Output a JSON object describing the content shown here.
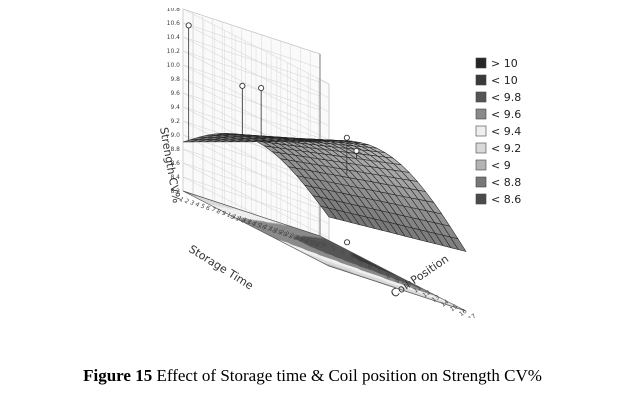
{
  "chart_data": {
    "type": "surface3d",
    "z_axis_label": "Strength CV%",
    "x_axis_label": "Storage Time",
    "y_axis_label": "Coil Position",
    "z_ticks": [
      "10.8",
      "10.6",
      "10.4",
      "10.2",
      "10.0",
      "9.8",
      "9.6",
      "9.4",
      "9.2",
      "9.0",
      "8.8",
      "8.6",
      "8.4",
      "8.2"
    ],
    "x_ticks": [
      "1",
      "2",
      "3",
      "4",
      "5",
      "6",
      "7",
      "8",
      "9",
      "10",
      "11",
      "12",
      "13",
      "14",
      "15",
      "16",
      "17",
      "18",
      "19",
      "20",
      "21",
      "22",
      "23",
      "24",
      "25",
      "26",
      "27"
    ],
    "y_ticks": [
      "1",
      "2",
      "3",
      "4",
      "5",
      "6",
      "7",
      "8",
      "9",
      "10",
      "11",
      "12",
      "13",
      "14",
      "15",
      "16",
      "17"
    ],
    "zlim": [
      8.2,
      10.8
    ],
    "legend_position": "right",
    "legend": [
      {
        "label": "> 10",
        "color": "#262626"
      },
      {
        "label": "< 10",
        "color": "#3a3a3a"
      },
      {
        "label": "< 9.8",
        "color": "#555555"
      },
      {
        "label": "< 9.6",
        "color": "#8a8a8a"
      },
      {
        "label": "< 9.4",
        "color": "#efefef"
      },
      {
        "label": "< 9.2",
        "color": "#d9d9d9"
      },
      {
        "label": "< 9",
        "color": "#b3b3b3"
      },
      {
        "label": "< 8.8",
        "color": "#777777"
      },
      {
        "label": "< 8.6",
        "color": "#4a4a4a"
      }
    ],
    "observed_points": [
      {
        "z": 10.6
      },
      {
        "z": 10.0
      },
      {
        "z": 10.1
      },
      {
        "z": 9.8
      },
      {
        "z": 10.0
      },
      {
        "z": 8.4
      }
    ]
  },
  "caption": {
    "label": "Figure 15",
    "text": " Effect of Storage time & Coil position on Strength CV%"
  }
}
